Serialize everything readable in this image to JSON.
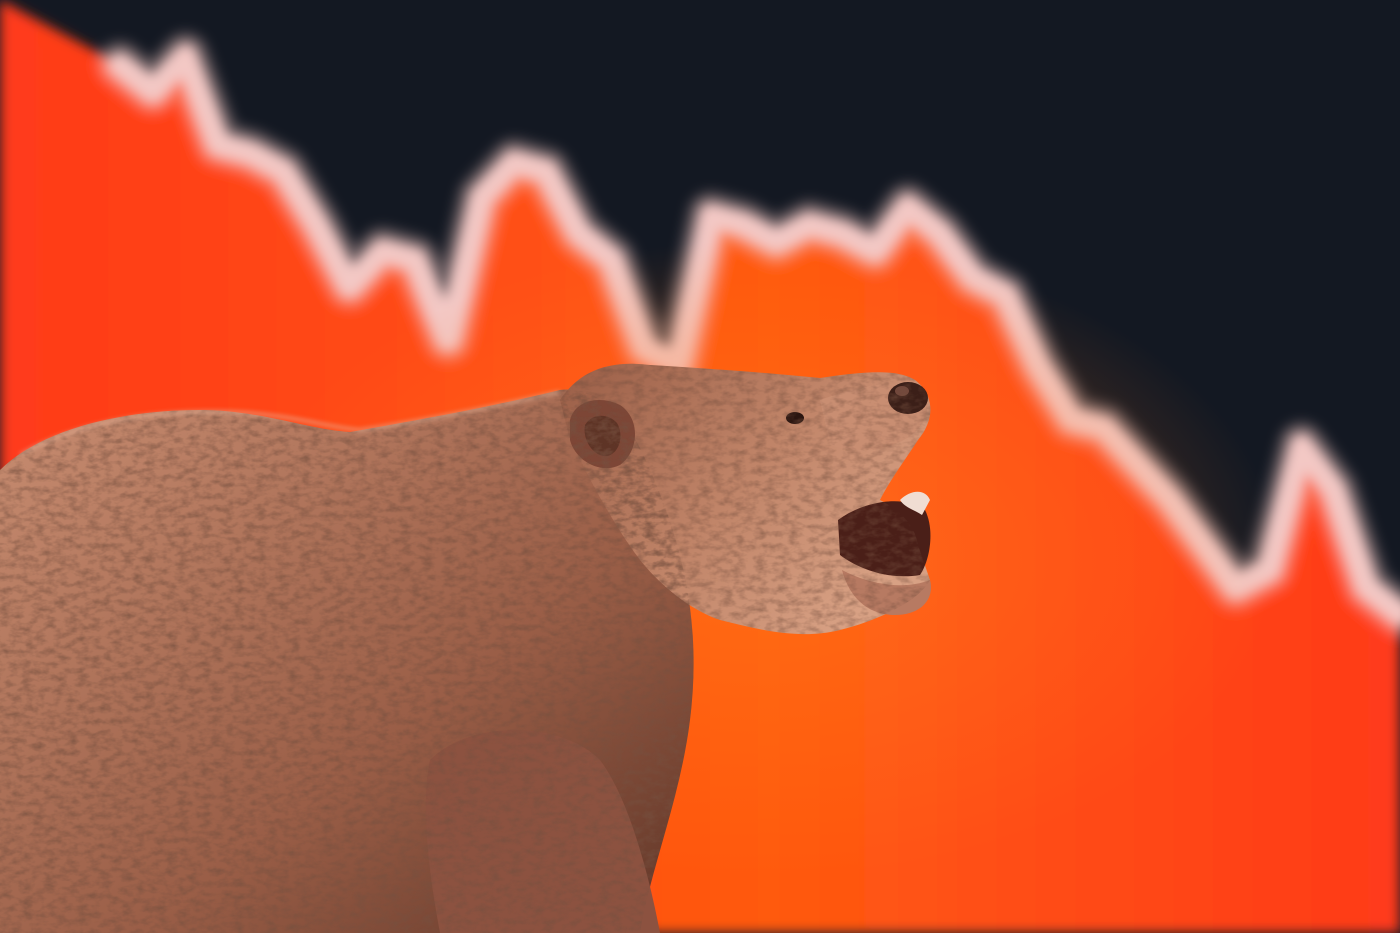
{
  "scene": {
    "subject": "bear-figurine",
    "colors": {
      "sky": "#131822",
      "area_fill_bright": "#ff3a1a",
      "area_fill_mid": "#ff5a10",
      "trend_line": "#f3c8c4",
      "bear_light": "#c98e72",
      "bear_mid": "#9a5e47",
      "bear_dark": "#5e3426"
    }
  },
  "chart_data": {
    "type": "area",
    "trend": "falling",
    "y": [
      95,
      92,
      96,
      86,
      85,
      83,
      77,
      70,
      74,
      73,
      64,
      80,
      84,
      83,
      76,
      73,
      63,
      61,
      78,
      77,
      75,
      77,
      76,
      74,
      79,
      76,
      71,
      69,
      61,
      55,
      54,
      50,
      46,
      41,
      36,
      38,
      52,
      47,
      36,
      33
    ]
  }
}
